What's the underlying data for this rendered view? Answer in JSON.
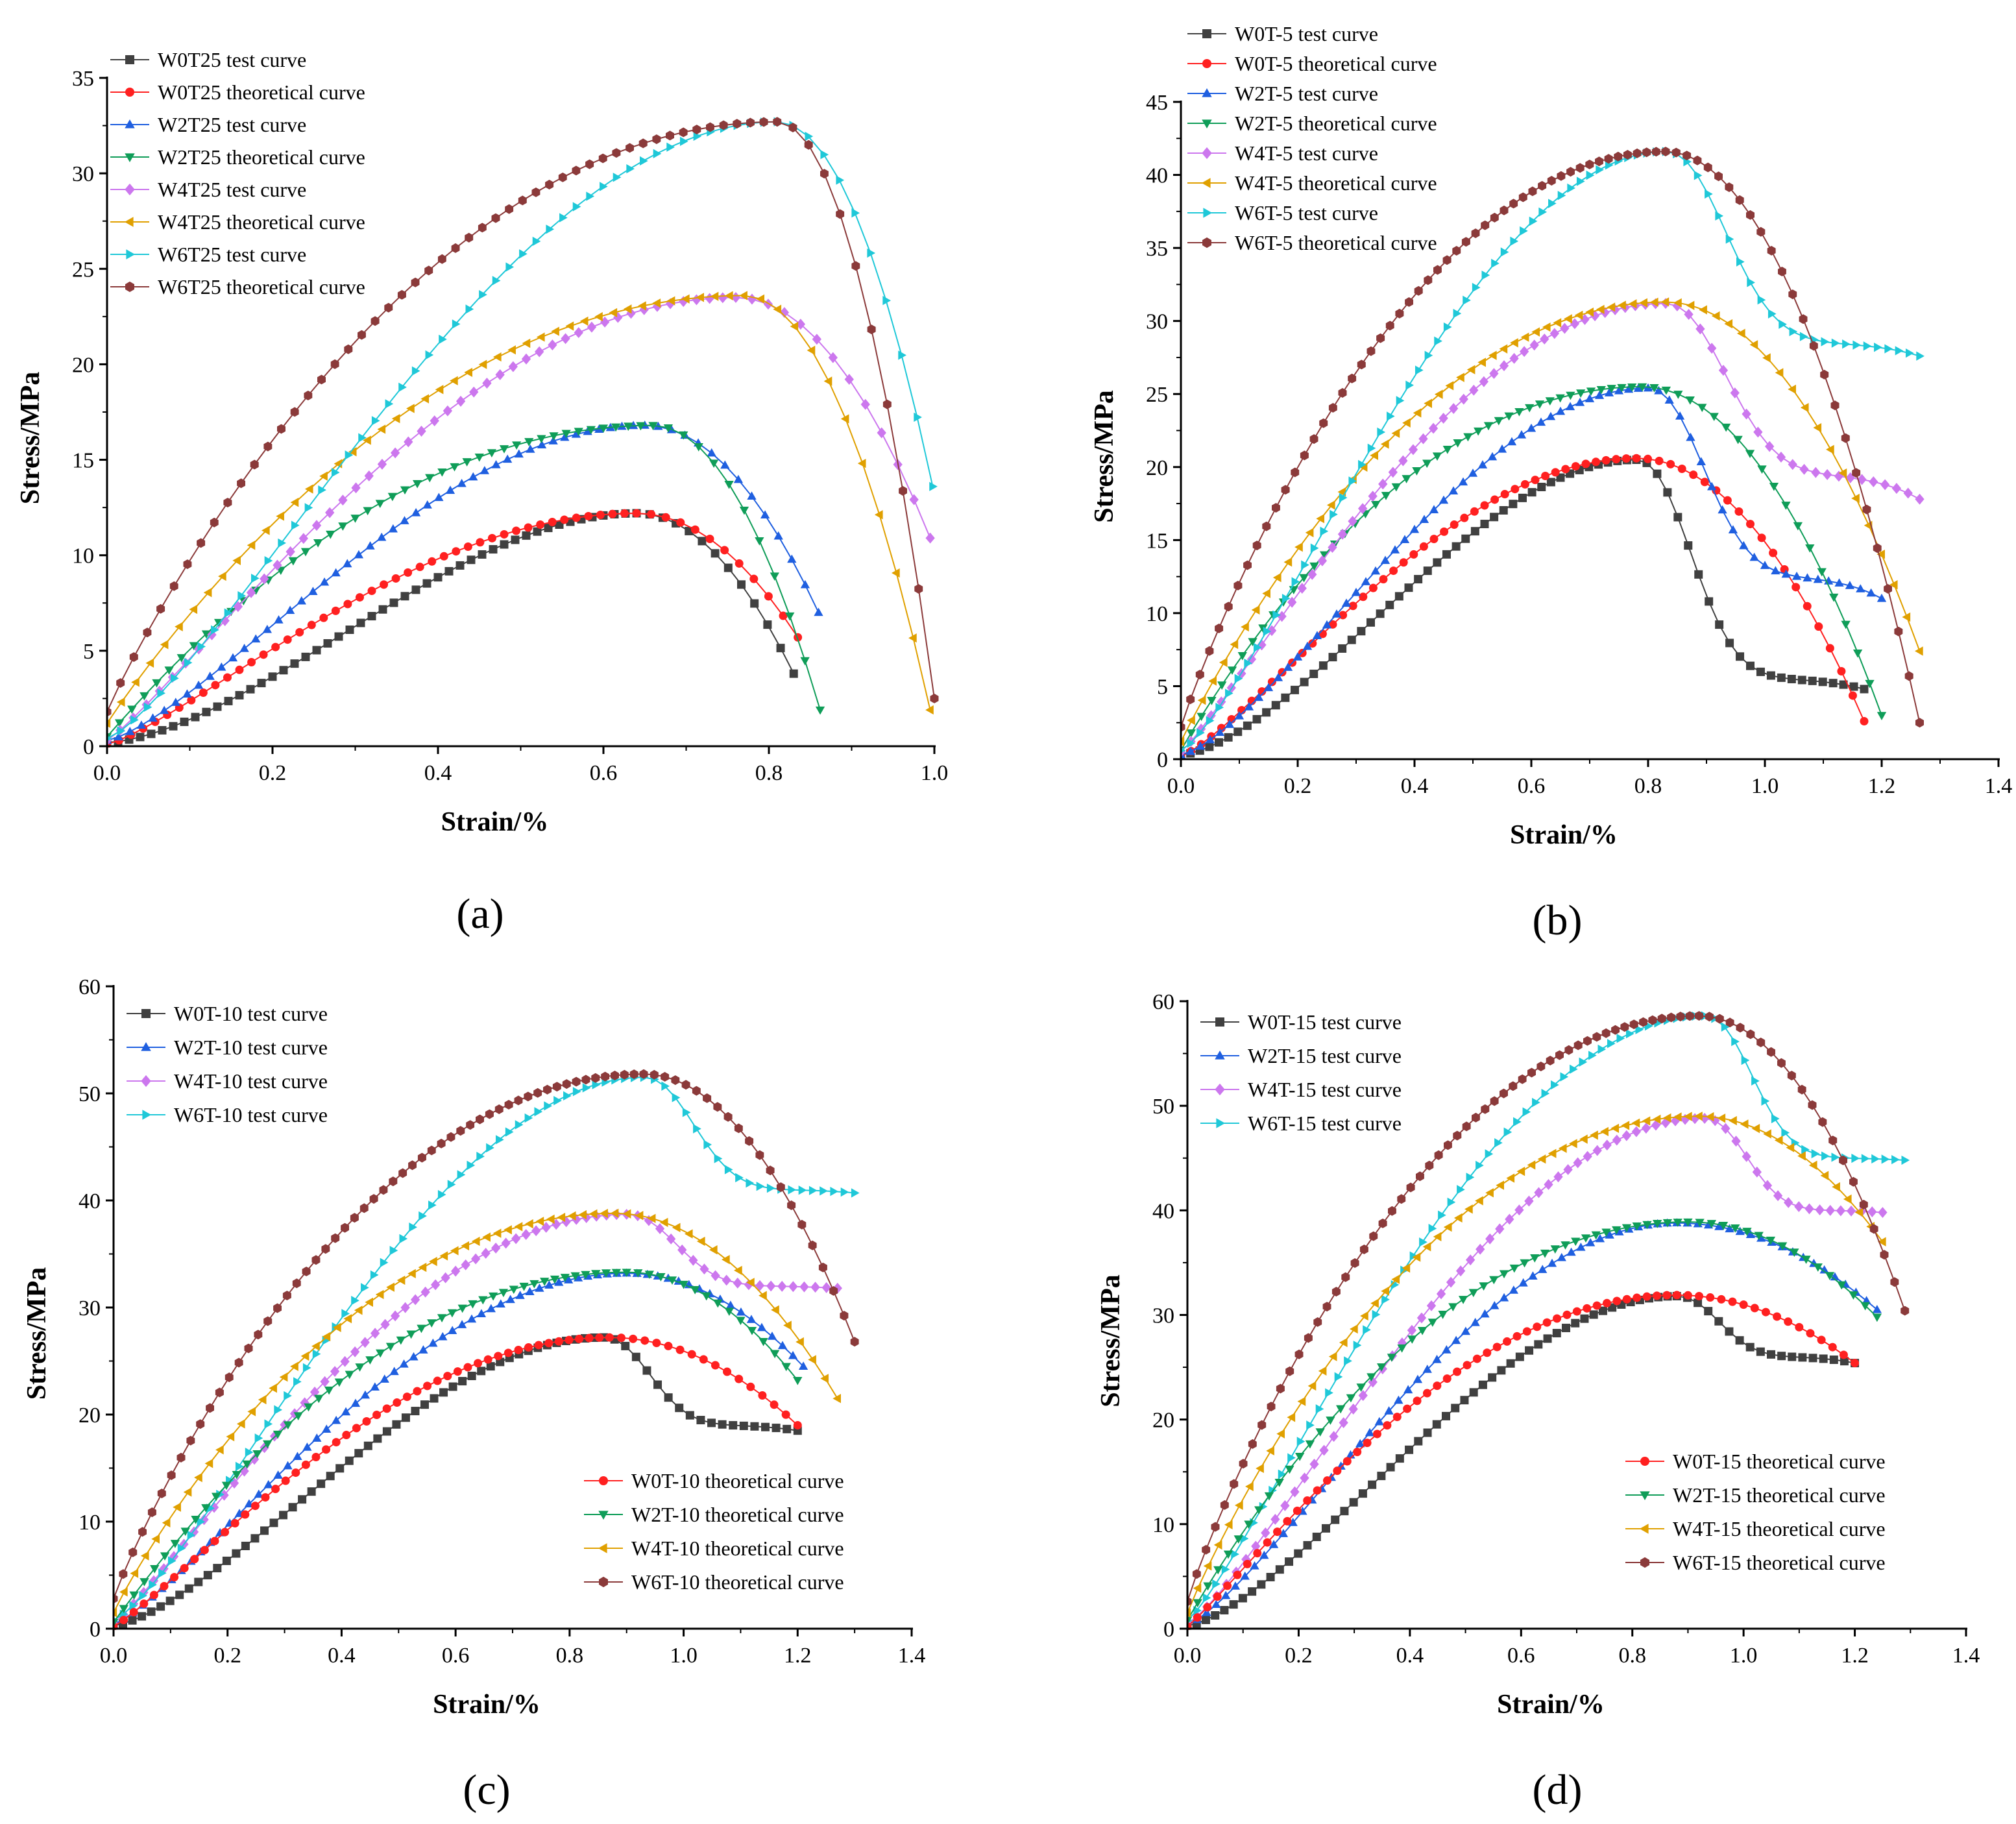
{
  "chart_data": [
    {
      "id": "a",
      "type": "line",
      "panel_label": "(a)",
      "xlabel": "Strain/%",
      "ylabel": "Stress/MPa",
      "xlim": [
        0,
        1.0
      ],
      "ylim": [
        0,
        35
      ],
      "xticks": [
        0.0,
        0.2,
        0.4,
        0.6,
        0.8,
        1.0
      ],
      "xtick_labels": [
        "0.0",
        "0.2",
        "0.4",
        "0.6",
        "0.8",
        "1.0"
      ],
      "yticks": [
        0,
        5,
        10,
        15,
        20,
        25,
        30,
        35
      ],
      "ytick_labels": [
        "0",
        "5",
        "10",
        "15",
        "20",
        "25",
        "30",
        "35"
      ],
      "legend_position": "top-left",
      "series": [
        {
          "name": "W0T25 test curve",
          "color": "#404040",
          "marker": "square",
          "peak_x": 0.64,
          "peak_y": 12.2,
          "start_y": 0.2,
          "end_x": 0.83,
          "end_y": 3.8,
          "curv": 1.6,
          "points": 60
        },
        {
          "name": "W0T25 theoretical curve",
          "color": "#ff2020",
          "marker": "circle",
          "peak_x": 0.64,
          "peak_y": 12.2,
          "start_y": 0.1,
          "end_x": 0.835,
          "end_y": 5.7,
          "curv": 1.25,
          "points": 55
        },
        {
          "name": "W2T25 test curve",
          "color": "#1f5fe0",
          "marker": "triangle-up",
          "peak_x": 0.65,
          "peak_y": 16.8,
          "start_y": 0.3,
          "end_x": 0.86,
          "end_y": 7.0,
          "curv": 1.35,
          "points": 60
        },
        {
          "name": "W2T25 theoretical curve",
          "color": "#0f9d58",
          "marker": "triangle-down",
          "peak_x": 0.66,
          "peak_y": 16.8,
          "start_y": 0.5,
          "end_x": 0.862,
          "end_y": 1.9,
          "curv": 1.0,
          "points": 55
        },
        {
          "name": "W4T25 test curve",
          "color": "#cc77ee",
          "marker": "diamond",
          "peak_x": 0.76,
          "peak_y": 23.5,
          "start_y": 0.3,
          "end_x": 0.995,
          "end_y": 10.9,
          "curv": 1.15,
          "points": 60
        },
        {
          "name": "W4T25 theoretical curve",
          "color": "#e0a000",
          "marker": "triangle-left",
          "peak_x": 0.77,
          "peak_y": 23.6,
          "start_y": 1.2,
          "end_x": 0.995,
          "end_y": 1.9,
          "curv": 0.95,
          "points": 55
        },
        {
          "name": "W6T25 test curve",
          "color": "#1fc8d8",
          "marker": "triangle-right",
          "peak_x": 0.81,
          "peak_y": 32.7,
          "start_y": 0.4,
          "end_x": 0.998,
          "end_y": 13.6,
          "curv": 1.3,
          "points": 60
        },
        {
          "name": "W6T25 theoretical curve",
          "color": "#8b3a3a",
          "marker": "hexagon",
          "peak_x": 0.81,
          "peak_y": 32.7,
          "start_y": 1.8,
          "end_x": 1.0,
          "end_y": 2.5,
          "curv": 0.9,
          "points": 60
        }
      ]
    },
    {
      "id": "b",
      "type": "line",
      "panel_label": "(b)",
      "xlabel": "Strain/%",
      "ylabel": "Stress/MPa",
      "xlim": [
        0,
        1.4
      ],
      "ylim": [
        0,
        45
      ],
      "xticks": [
        0.0,
        0.2,
        0.4,
        0.6,
        0.8,
        1.0,
        1.2,
        1.4
      ],
      "xtick_labels": [
        "0.0",
        "0.2",
        "0.4",
        "0.6",
        "0.8",
        "1.0",
        "1.2",
        "1.4"
      ],
      "yticks": [
        0,
        5,
        10,
        15,
        20,
        25,
        30,
        35,
        40,
        45
      ],
      "ytick_labels": [
        "0",
        "5",
        "10",
        "15",
        "20",
        "25",
        "30",
        "35",
        "40",
        "45"
      ],
      "legend_position": "top-left",
      "series": [
        {
          "name": "W0T-5 test curve",
          "color": "#404040",
          "marker": "square",
          "peak_x": 0.78,
          "peak_y": 20.5,
          "start_y": 0.3,
          "end_x": 1.17,
          "end_y": 4.8,
          "plateau_y": 5.5,
          "curv": 1.55,
          "points": 70
        },
        {
          "name": "W0T-5 theoretical curve",
          "color": "#ff2020",
          "marker": "circle",
          "peak_x": 0.78,
          "peak_y": 20.6,
          "start_y": 0.2,
          "end_x": 1.17,
          "end_y": 2.6,
          "curv": 1.25,
          "points": 65
        },
        {
          "name": "W2T-5 test curve",
          "color": "#1f5fe0",
          "marker": "triangle-up",
          "peak_x": 0.8,
          "peak_y": 25.4,
          "start_y": 0.3,
          "end_x": 1.2,
          "end_y": 11.0,
          "plateau_y": 12.5,
          "curv": 1.4,
          "points": 70
        },
        {
          "name": "W2T-5 theoretical curve",
          "color": "#0f9d58",
          "marker": "triangle-down",
          "peak_x": 0.79,
          "peak_y": 25.5,
          "start_y": 0.6,
          "end_x": 1.2,
          "end_y": 3.0,
          "curv": 0.95,
          "points": 65
        },
        {
          "name": "W4T-5 test curve",
          "color": "#cc77ee",
          "marker": "diamond",
          "peak_x": 0.83,
          "peak_y": 31.2,
          "start_y": 0.5,
          "end_x": 1.265,
          "end_y": 17.8,
          "plateau_y": 19.5,
          "curv": 1.15,
          "points": 70
        },
        {
          "name": "W4T-5 theoretical curve",
          "color": "#e0a000",
          "marker": "triangle-left",
          "peak_x": 0.83,
          "peak_y": 31.3,
          "start_y": 1.2,
          "end_x": 1.265,
          "end_y": 7.4,
          "curv": 0.95,
          "points": 65
        },
        {
          "name": "W6T-5 test curve",
          "color": "#1fc8d8",
          "marker": "triangle-right",
          "peak_x": 0.83,
          "peak_y": 41.6,
          "start_y": 0.6,
          "end_x": 1.265,
          "end_y": 27.6,
          "plateau_y": 28.5,
          "curv": 1.3,
          "points": 75
        },
        {
          "name": "W6T-5 theoretical curve",
          "color": "#8b3a3a",
          "marker": "hexagon",
          "peak_x": 0.83,
          "peak_y": 41.6,
          "start_y": 2.2,
          "end_x": 1.265,
          "end_y": 2.5,
          "curv": 0.9,
          "points": 75
        }
      ]
    },
    {
      "id": "c",
      "type": "line",
      "panel_label": "(c)",
      "xlabel": "Strain/%",
      "ylabel": "Stress/MPa",
      "xlim": [
        0,
        1.4
      ],
      "ylim": [
        0,
        60
      ],
      "xticks": [
        0.0,
        0.2,
        0.4,
        0.6,
        0.8,
        1.0,
        1.2,
        1.4
      ],
      "xtick_labels": [
        "0.0",
        "0.2",
        "0.4",
        "0.6",
        "0.8",
        "1.0",
        "1.2",
        "1.4"
      ],
      "yticks": [
        0,
        10,
        20,
        30,
        40,
        50,
        60
      ],
      "ytick_labels": [
        "0",
        "10",
        "20",
        "30",
        "40",
        "50",
        "60"
      ],
      "legend_position": "top-left (test) and bottom-right (theoretical)",
      "series": [
        {
          "name": "W0T-10 test curve",
          "color": "#404040",
          "marker": "square",
          "legend_group": 0,
          "peak_x": 0.86,
          "peak_y": 27.2,
          "start_y": 0.3,
          "end_x": 1.2,
          "end_y": 18.5,
          "plateau_y": 19.0,
          "curv": 1.45,
          "points": 70
        },
        {
          "name": "W2T-10 test curve",
          "color": "#1f5fe0",
          "marker": "triangle-up",
          "legend_group": 0,
          "peak_x": 0.9,
          "peak_y": 33.2,
          "start_y": 0.4,
          "end_x": 1.21,
          "end_y": 24.5,
          "curv": 1.25,
          "points": 70
        },
        {
          "name": "W4T-10 test curve",
          "color": "#cc77ee",
          "marker": "diamond",
          "legend_group": 0,
          "peak_x": 0.9,
          "peak_y": 38.7,
          "start_y": 0.5,
          "end_x": 1.27,
          "end_y": 31.8,
          "plateau_y": 32.0,
          "curv": 1.15,
          "points": 70
        },
        {
          "name": "W6T-10 test curve",
          "color": "#1fc8d8",
          "marker": "triangle-right",
          "legend_group": 0,
          "peak_x": 0.93,
          "peak_y": 51.5,
          "start_y": 0.8,
          "end_x": 1.3,
          "end_y": 40.7,
          "plateau_y": 41.0,
          "curv": 1.3,
          "points": 75
        },
        {
          "name": "W0T-10 theoretical curve",
          "color": "#ff2020",
          "marker": "circle",
          "legend_group": 1,
          "peak_x": 0.87,
          "peak_y": 27.2,
          "start_y": 0.2,
          "end_x": 1.2,
          "end_y": 19.0,
          "curv": 1.15,
          "points": 65
        },
        {
          "name": "W2T-10 theoretical curve",
          "color": "#0f9d58",
          "marker": "triangle-down",
          "legend_group": 1,
          "peak_x": 0.9,
          "peak_y": 33.3,
          "start_y": 0.6,
          "end_x": 1.2,
          "end_y": 23.2,
          "curv": 1.0,
          "points": 65
        },
        {
          "name": "W4T-10 theoretical curve",
          "color": "#e0a000",
          "marker": "triangle-left",
          "legend_group": 1,
          "peak_x": 0.88,
          "peak_y": 38.8,
          "start_y": 1.5,
          "end_x": 1.27,
          "end_y": 21.5,
          "curv": 0.9,
          "points": 65
        },
        {
          "name": "W6T-10 theoretical curve",
          "color": "#8b3a3a",
          "marker": "hexagon",
          "legend_group": 1,
          "peak_x": 0.93,
          "peak_y": 51.8,
          "start_y": 2.8,
          "end_x": 1.3,
          "end_y": 26.8,
          "curv": 0.88,
          "points": 75
        }
      ]
    },
    {
      "id": "d",
      "type": "line",
      "panel_label": "(d)",
      "xlabel": "Strain/%",
      "ylabel": "Stress/MPa",
      "xlim": [
        0,
        1.4
      ],
      "ylim": [
        0,
        60
      ],
      "xticks": [
        0.0,
        0.2,
        0.4,
        0.6,
        0.8,
        1.0,
        1.2,
        1.4
      ],
      "xtick_labels": [
        "0.0",
        "0.2",
        "0.4",
        "0.6",
        "0.8",
        "1.0",
        "1.2",
        "1.4"
      ],
      "yticks": [
        0,
        10,
        20,
        30,
        40,
        50,
        60
      ],
      "ytick_labels": [
        "0",
        "10",
        "20",
        "30",
        "40",
        "50",
        "60"
      ],
      "legend_position": "top-left (test) and bottom-right (theoretical)",
      "series": [
        {
          "name": "W0T-15 test curve",
          "color": "#404040",
          "marker": "square",
          "legend_group": 0,
          "peak_x": 0.88,
          "peak_y": 31.8,
          "start_y": 0.3,
          "end_x": 1.2,
          "end_y": 25.4,
          "plateau_y": 26.0,
          "curv": 1.45,
          "points": 70
        },
        {
          "name": "W2T-15 test curve",
          "color": "#1f5fe0",
          "marker": "triangle-up",
          "legend_group": 0,
          "peak_x": 0.88,
          "peak_y": 38.8,
          "start_y": 0.4,
          "end_x": 1.24,
          "end_y": 30.5,
          "curv": 1.3,
          "points": 70
        },
        {
          "name": "W4T-15 test curve",
          "color": "#cc77ee",
          "marker": "diamond",
          "legend_group": 0,
          "peak_x": 0.93,
          "peak_y": 48.8,
          "start_y": 0.5,
          "end_x": 1.25,
          "end_y": 39.8,
          "plateau_y": 40.0,
          "curv": 1.25,
          "points": 70
        },
        {
          "name": "W6T-15 test curve",
          "color": "#1fc8d8",
          "marker": "triangle-right",
          "legend_group": 0,
          "peak_x": 0.93,
          "peak_y": 58.6,
          "start_y": 0.8,
          "end_x": 1.29,
          "end_y": 44.8,
          "plateau_y": 45.0,
          "curv": 1.2,
          "points": 75
        },
        {
          "name": "W0T-15 theoretical curve",
          "color": "#ff2020",
          "marker": "circle",
          "legend_group": 1,
          "peak_x": 0.88,
          "peak_y": 31.9,
          "start_y": 0.2,
          "end_x": 1.2,
          "end_y": 25.4,
          "curv": 1.1,
          "points": 65
        },
        {
          "name": "W2T-15 theoretical curve",
          "color": "#0f9d58",
          "marker": "triangle-down",
          "legend_group": 1,
          "peak_x": 0.9,
          "peak_y": 38.9,
          "start_y": 0.8,
          "end_x": 1.24,
          "end_y": 29.8,
          "curv": 0.95,
          "points": 65
        },
        {
          "name": "W4T-15 theoretical curve",
          "color": "#e0a000",
          "marker": "triangle-left",
          "legend_group": 1,
          "peak_x": 0.92,
          "peak_y": 49.0,
          "start_y": 1.5,
          "end_x": 1.25,
          "end_y": 37.0,
          "curv": 0.9,
          "points": 65
        },
        {
          "name": "W6T-15 theoretical curve",
          "color": "#8b3a3a",
          "marker": "hexagon",
          "legend_group": 1,
          "peak_x": 0.92,
          "peak_y": 58.6,
          "start_y": 2.6,
          "end_x": 1.29,
          "end_y": 30.4,
          "curv": 0.88,
          "points": 75
        }
      ]
    }
  ]
}
